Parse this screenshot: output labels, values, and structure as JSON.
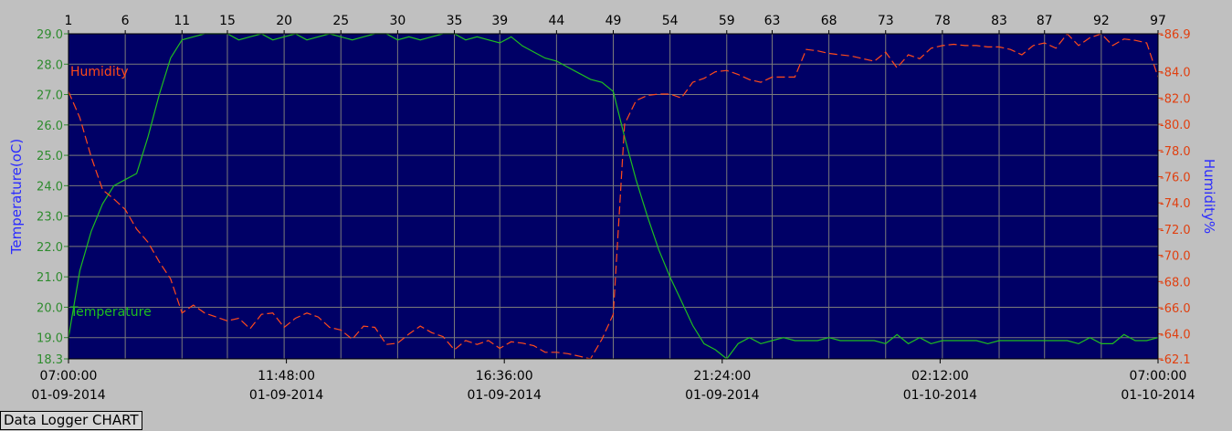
{
  "footer_label": "Data Logger CHART",
  "chart_data": {
    "type": "line",
    "colors": {
      "plot_background": "#000066",
      "grid": "#7a7a7a",
      "temperature": "#1fbf1f",
      "humidity": "#ff4a1a",
      "left_ticks": "#2e8b2e",
      "right_ticks": "#e04010",
      "axis_titles": "#2b2bff"
    },
    "grid": true,
    "left_axis": {
      "title": "Temperature(oC)",
      "range": [
        18.3,
        29.0
      ],
      "ticks": [
        "18.3",
        "19.0",
        "20.0",
        "21.0",
        "22.0",
        "23.0",
        "24.0",
        "25.0",
        "26.0",
        "27.0",
        "28.0",
        "29.0"
      ]
    },
    "right_axis": {
      "title": "Humidity%",
      "range": [
        62.1,
        86.9
      ],
      "ticks": [
        "62.1",
        "64.0",
        "66.0",
        "68.0",
        "70.0",
        "72.0",
        "74.0",
        "76.0",
        "78.0",
        "80.0",
        "82.0",
        "84.0",
        "86.9"
      ]
    },
    "top_axis": {
      "range": [
        1,
        97
      ],
      "ticks": [
        "1",
        "6",
        "11",
        "15",
        "20",
        "25",
        "30",
        "35",
        "39",
        "44",
        "49",
        "54",
        "59",
        "63",
        "68",
        "73",
        "78",
        "83",
        "87",
        "92",
        "97"
      ]
    },
    "bottom_axis": {
      "ticks": [
        {
          "time": "07:00:00",
          "date": "01-09-2014"
        },
        {
          "time": "11:48:00",
          "date": "01-09-2014"
        },
        {
          "time": "16:36:00",
          "date": "01-09-2014"
        },
        {
          "time": "21:24:00",
          "date": "01-09-2014"
        },
        {
          "time": "02:12:00",
          "date": "01-10-2014"
        },
        {
          "time": "07:00:00",
          "date": "01-10-2014"
        }
      ]
    },
    "series": [
      {
        "name": "Temperature",
        "axis": "left",
        "style": "solid",
        "x": [
          1,
          2,
          3,
          4,
          5,
          6,
          7,
          8,
          9,
          10,
          11,
          12,
          13,
          14,
          15,
          16,
          17,
          18,
          19,
          20,
          21,
          22,
          23,
          24,
          25,
          26,
          27,
          28,
          29,
          30,
          31,
          32,
          33,
          34,
          35,
          36,
          37,
          38,
          39,
          40,
          41,
          42,
          43,
          44,
          45,
          46,
          47,
          48,
          49,
          50,
          51,
          52,
          53,
          54,
          55,
          56,
          57,
          58,
          59,
          60,
          61,
          62,
          63,
          64,
          65,
          66,
          67,
          68,
          69,
          70,
          71,
          72,
          73,
          74,
          75,
          76,
          77,
          78,
          79,
          80,
          81,
          82,
          83,
          84,
          85,
          86,
          87,
          88,
          89,
          90,
          91,
          92,
          93,
          94,
          95,
          96,
          97
        ],
        "values": [
          19.0,
          21.2,
          22.5,
          23.4,
          24.0,
          24.2,
          24.4,
          25.6,
          27.0,
          28.2,
          28.8,
          28.9,
          29.0,
          29.0,
          29.0,
          28.8,
          28.9,
          29.0,
          28.8,
          28.9,
          29.0,
          28.8,
          28.9,
          29.0,
          28.9,
          28.8,
          28.9,
          29.0,
          29.0,
          28.8,
          28.9,
          28.8,
          28.9,
          29.0,
          29.0,
          28.8,
          28.9,
          28.8,
          28.7,
          28.9,
          28.6,
          28.4,
          28.2,
          28.1,
          27.9,
          27.7,
          27.5,
          27.4,
          27.1,
          25.6,
          24.2,
          23.0,
          21.9,
          21.0,
          20.2,
          19.4,
          18.8,
          18.6,
          18.3,
          18.8,
          19.0,
          18.8,
          18.9,
          19.0,
          18.9,
          18.9,
          18.9,
          19.0,
          18.9,
          18.9,
          18.9,
          18.9,
          18.8,
          19.1,
          18.8,
          19.0,
          18.8,
          18.9,
          18.9,
          18.9,
          18.9,
          18.8,
          18.9,
          18.9,
          18.9,
          18.9,
          18.9,
          18.9,
          18.9,
          18.8,
          19.0,
          18.8,
          18.8,
          19.1,
          18.9,
          18.9,
          19.0
        ]
      },
      {
        "name": "Humidity",
        "axis": "right",
        "style": "dashed",
        "x": [
          1,
          2,
          3,
          4,
          5,
          6,
          7,
          8,
          9,
          10,
          11,
          12,
          13,
          14,
          15,
          16,
          17,
          18,
          19,
          20,
          21,
          22,
          23,
          24,
          25,
          26,
          27,
          28,
          29,
          30,
          31,
          32,
          33,
          34,
          35,
          36,
          37,
          38,
          39,
          40,
          41,
          42,
          43,
          44,
          45,
          46,
          47,
          48,
          49,
          50,
          51,
          52,
          53,
          54,
          55,
          56,
          57,
          58,
          59,
          60,
          61,
          62,
          63,
          64,
          65,
          66,
          67,
          68,
          69,
          70,
          71,
          72,
          73,
          74,
          75,
          76,
          77,
          78,
          79,
          80,
          81,
          82,
          83,
          84,
          85,
          86,
          87,
          88,
          89,
          90,
          91,
          92,
          93,
          94,
          95,
          96,
          97
        ],
        "values": [
          82.5,
          80.5,
          77.5,
          75.0,
          74.3,
          73.5,
          72.0,
          71.0,
          69.5,
          68.2,
          65.6,
          66.2,
          65.6,
          65.3,
          65.0,
          65.2,
          64.4,
          65.5,
          65.6,
          64.5,
          65.2,
          65.6,
          65.3,
          64.5,
          64.3,
          63.6,
          64.6,
          64.5,
          63.2,
          63.3,
          64.0,
          64.6,
          64.1,
          63.8,
          62.8,
          63.5,
          63.2,
          63.5,
          62.9,
          63.4,
          63.3,
          63.1,
          62.6,
          62.6,
          62.5,
          62.3,
          62.1,
          63.6,
          65.5,
          80.0,
          81.8,
          82.2,
          82.3,
          82.3,
          82.0,
          83.2,
          83.5,
          84.0,
          84.1,
          83.8,
          83.4,
          83.2,
          83.6,
          83.6,
          83.6,
          85.7,
          85.6,
          85.4,
          85.3,
          85.2,
          85.0,
          84.8,
          85.5,
          84.3,
          85.3,
          85.0,
          85.8,
          86.0,
          86.1,
          86.0,
          86.0,
          85.9,
          85.9,
          85.7,
          85.3,
          86.0,
          86.2,
          85.8,
          86.9,
          86.0,
          86.6,
          86.9,
          86.0,
          86.5,
          86.4,
          86.2,
          83.6
        ]
      }
    ]
  }
}
